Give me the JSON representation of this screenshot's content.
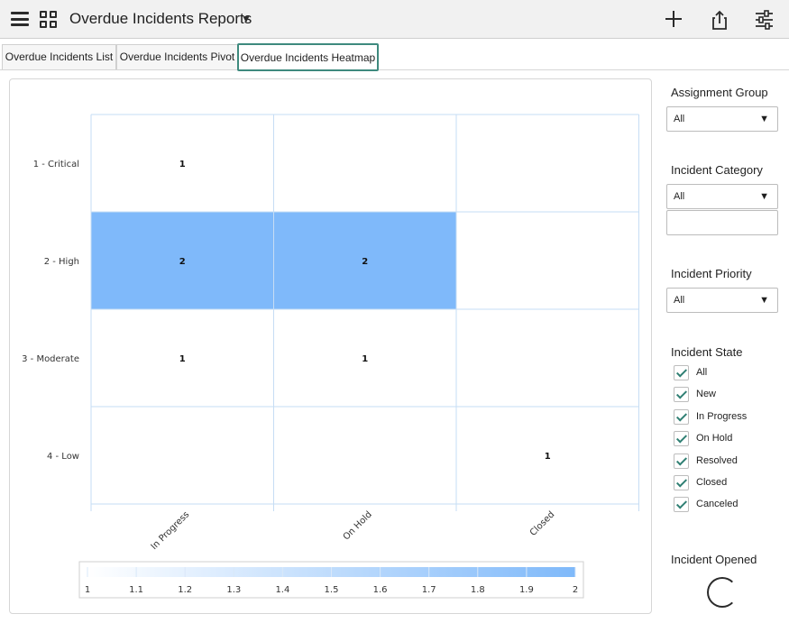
{
  "header": {
    "menu_icon": "hamburger-icon",
    "apps_icon": "grid-icon",
    "title": "Overdue Incidents Reports",
    "dropdown_icon": "caret-down-icon",
    "actions": [
      {
        "icon": "plus-icon"
      },
      {
        "icon": "share-icon"
      },
      {
        "icon": "filter-sliders-icon"
      }
    ]
  },
  "tabs": [
    {
      "label": "Overdue Incidents List",
      "active": false
    },
    {
      "label": "Overdue Incidents Pivot",
      "active": false
    },
    {
      "label": "Overdue Incidents Heatmap",
      "active": true
    }
  ],
  "chart_data": {
    "type": "heatmap",
    "x_categories": [
      "In Progress",
      "On Hold",
      "Closed"
    ],
    "y_categories": [
      "1 - Critical",
      "2 - High",
      "3 - Moderate",
      "4 - Low"
    ],
    "cells": [
      {
        "row": "1 - Critical",
        "col": "In Progress",
        "value": 1
      },
      {
        "row": "2 - High",
        "col": "In Progress",
        "value": 2
      },
      {
        "row": "2 - High",
        "col": "On Hold",
        "value": 2
      },
      {
        "row": "3 - Moderate",
        "col": "In Progress",
        "value": 1
      },
      {
        "row": "3 - Moderate",
        "col": "On Hold",
        "value": 1
      },
      {
        "row": "4 - Low",
        "col": "Closed",
        "value": 1
      }
    ],
    "color_scale": {
      "min": 1,
      "max": 2,
      "ticks": [
        "1",
        "1.1",
        "1.2",
        "1.3",
        "1.4",
        "1.5",
        "1.6",
        "1.7",
        "1.8",
        "1.9",
        "2"
      ],
      "min_color": "#ffffff",
      "max_color": "#7fb9fa"
    },
    "legend_position": "bottom",
    "grid": true,
    "grid_color": "#c6ddf4"
  },
  "filters": {
    "assignment_group": {
      "label": "Assignment Group",
      "value": "All"
    },
    "incident_category": {
      "label": "Incident Category",
      "value": "All",
      "search_value": ""
    },
    "incident_priority": {
      "label": "Incident Priority",
      "value": "All"
    },
    "incident_state": {
      "label": "Incident State",
      "options": [
        {
          "label": "All",
          "checked": true
        },
        {
          "label": "New",
          "checked": true
        },
        {
          "label": "In Progress",
          "checked": true
        },
        {
          "label": "On Hold",
          "checked": true
        },
        {
          "label": "Resolved",
          "checked": true
        },
        {
          "label": "Closed",
          "checked": true
        },
        {
          "label": "Canceled",
          "checked": true
        }
      ]
    },
    "incident_opened": {
      "label": "Incident Opened",
      "loading_icon": "spinner-icon"
    }
  },
  "colors": {
    "accent": "#3e8a7e",
    "check": "#2f7f73"
  }
}
